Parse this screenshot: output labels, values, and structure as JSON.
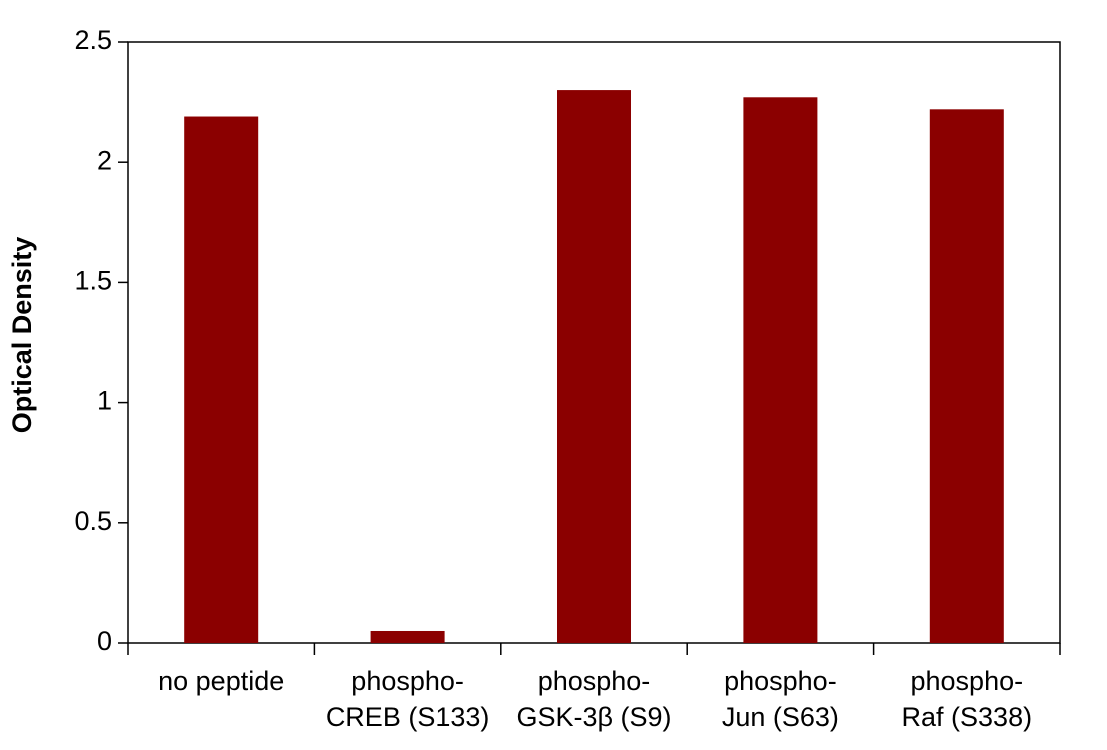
{
  "chart_data": {
    "type": "bar",
    "y_label": "Optical Density",
    "categories": [
      [
        "no peptide"
      ],
      [
        "phospho-",
        "CREB (S133)"
      ],
      [
        "phospho-",
        "GSK-3β (S9)"
      ],
      [
        "phospho-",
        "Jun (S63)"
      ],
      [
        "phospho-",
        "Raf (S338)"
      ]
    ],
    "values": [
      2.19,
      0.05,
      2.3,
      2.27,
      2.22
    ],
    "color": "#8b0000",
    "ylim": [
      0,
      2.5
    ],
    "yticks": [
      0,
      0.5,
      1,
      1.5,
      2,
      2.5
    ]
  }
}
